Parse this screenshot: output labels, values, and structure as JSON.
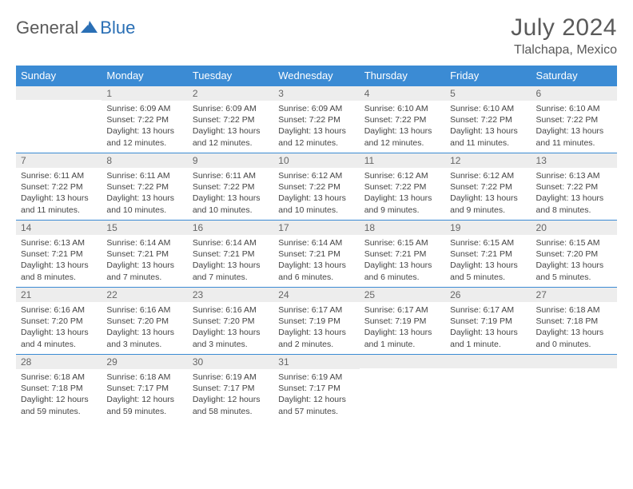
{
  "brand": {
    "part1": "General",
    "part2": "Blue"
  },
  "title": "July 2024",
  "location": "Tlalchapa, Mexico",
  "day_names": [
    "Sunday",
    "Monday",
    "Tuesday",
    "Wednesday",
    "Thursday",
    "Friday",
    "Saturday"
  ],
  "colors": {
    "header_bg": "#3b8bd4",
    "header_fg": "#ffffff",
    "daynum_bg": "#ededed",
    "daynum_fg": "#666666",
    "text": "#444444",
    "title_fg": "#5a5a5a",
    "brand_blue": "#2a6fb5",
    "row_border": "#3b8bd4"
  },
  "weeks": [
    [
      {
        "num": "",
        "sunrise": "",
        "sunset": "",
        "daylight": ""
      },
      {
        "num": "1",
        "sunrise": "Sunrise: 6:09 AM",
        "sunset": "Sunset: 7:22 PM",
        "daylight": "Daylight: 13 hours and 12 minutes."
      },
      {
        "num": "2",
        "sunrise": "Sunrise: 6:09 AM",
        "sunset": "Sunset: 7:22 PM",
        "daylight": "Daylight: 13 hours and 12 minutes."
      },
      {
        "num": "3",
        "sunrise": "Sunrise: 6:09 AM",
        "sunset": "Sunset: 7:22 PM",
        "daylight": "Daylight: 13 hours and 12 minutes."
      },
      {
        "num": "4",
        "sunrise": "Sunrise: 6:10 AM",
        "sunset": "Sunset: 7:22 PM",
        "daylight": "Daylight: 13 hours and 12 minutes."
      },
      {
        "num": "5",
        "sunrise": "Sunrise: 6:10 AM",
        "sunset": "Sunset: 7:22 PM",
        "daylight": "Daylight: 13 hours and 11 minutes."
      },
      {
        "num": "6",
        "sunrise": "Sunrise: 6:10 AM",
        "sunset": "Sunset: 7:22 PM",
        "daylight": "Daylight: 13 hours and 11 minutes."
      }
    ],
    [
      {
        "num": "7",
        "sunrise": "Sunrise: 6:11 AM",
        "sunset": "Sunset: 7:22 PM",
        "daylight": "Daylight: 13 hours and 11 minutes."
      },
      {
        "num": "8",
        "sunrise": "Sunrise: 6:11 AM",
        "sunset": "Sunset: 7:22 PM",
        "daylight": "Daylight: 13 hours and 10 minutes."
      },
      {
        "num": "9",
        "sunrise": "Sunrise: 6:11 AM",
        "sunset": "Sunset: 7:22 PM",
        "daylight": "Daylight: 13 hours and 10 minutes."
      },
      {
        "num": "10",
        "sunrise": "Sunrise: 6:12 AM",
        "sunset": "Sunset: 7:22 PM",
        "daylight": "Daylight: 13 hours and 10 minutes."
      },
      {
        "num": "11",
        "sunrise": "Sunrise: 6:12 AM",
        "sunset": "Sunset: 7:22 PM",
        "daylight": "Daylight: 13 hours and 9 minutes."
      },
      {
        "num": "12",
        "sunrise": "Sunrise: 6:12 AM",
        "sunset": "Sunset: 7:22 PM",
        "daylight": "Daylight: 13 hours and 9 minutes."
      },
      {
        "num": "13",
        "sunrise": "Sunrise: 6:13 AM",
        "sunset": "Sunset: 7:22 PM",
        "daylight": "Daylight: 13 hours and 8 minutes."
      }
    ],
    [
      {
        "num": "14",
        "sunrise": "Sunrise: 6:13 AM",
        "sunset": "Sunset: 7:21 PM",
        "daylight": "Daylight: 13 hours and 8 minutes."
      },
      {
        "num": "15",
        "sunrise": "Sunrise: 6:14 AM",
        "sunset": "Sunset: 7:21 PM",
        "daylight": "Daylight: 13 hours and 7 minutes."
      },
      {
        "num": "16",
        "sunrise": "Sunrise: 6:14 AM",
        "sunset": "Sunset: 7:21 PM",
        "daylight": "Daylight: 13 hours and 7 minutes."
      },
      {
        "num": "17",
        "sunrise": "Sunrise: 6:14 AM",
        "sunset": "Sunset: 7:21 PM",
        "daylight": "Daylight: 13 hours and 6 minutes."
      },
      {
        "num": "18",
        "sunrise": "Sunrise: 6:15 AM",
        "sunset": "Sunset: 7:21 PM",
        "daylight": "Daylight: 13 hours and 6 minutes."
      },
      {
        "num": "19",
        "sunrise": "Sunrise: 6:15 AM",
        "sunset": "Sunset: 7:21 PM",
        "daylight": "Daylight: 13 hours and 5 minutes."
      },
      {
        "num": "20",
        "sunrise": "Sunrise: 6:15 AM",
        "sunset": "Sunset: 7:20 PM",
        "daylight": "Daylight: 13 hours and 5 minutes."
      }
    ],
    [
      {
        "num": "21",
        "sunrise": "Sunrise: 6:16 AM",
        "sunset": "Sunset: 7:20 PM",
        "daylight": "Daylight: 13 hours and 4 minutes."
      },
      {
        "num": "22",
        "sunrise": "Sunrise: 6:16 AM",
        "sunset": "Sunset: 7:20 PM",
        "daylight": "Daylight: 13 hours and 3 minutes."
      },
      {
        "num": "23",
        "sunrise": "Sunrise: 6:16 AM",
        "sunset": "Sunset: 7:20 PM",
        "daylight": "Daylight: 13 hours and 3 minutes."
      },
      {
        "num": "24",
        "sunrise": "Sunrise: 6:17 AM",
        "sunset": "Sunset: 7:19 PM",
        "daylight": "Daylight: 13 hours and 2 minutes."
      },
      {
        "num": "25",
        "sunrise": "Sunrise: 6:17 AM",
        "sunset": "Sunset: 7:19 PM",
        "daylight": "Daylight: 13 hours and 1 minute."
      },
      {
        "num": "26",
        "sunrise": "Sunrise: 6:17 AM",
        "sunset": "Sunset: 7:19 PM",
        "daylight": "Daylight: 13 hours and 1 minute."
      },
      {
        "num": "27",
        "sunrise": "Sunrise: 6:18 AM",
        "sunset": "Sunset: 7:18 PM",
        "daylight": "Daylight: 13 hours and 0 minutes."
      }
    ],
    [
      {
        "num": "28",
        "sunrise": "Sunrise: 6:18 AM",
        "sunset": "Sunset: 7:18 PM",
        "daylight": "Daylight: 12 hours and 59 minutes."
      },
      {
        "num": "29",
        "sunrise": "Sunrise: 6:18 AM",
        "sunset": "Sunset: 7:17 PM",
        "daylight": "Daylight: 12 hours and 59 minutes."
      },
      {
        "num": "30",
        "sunrise": "Sunrise: 6:19 AM",
        "sunset": "Sunset: 7:17 PM",
        "daylight": "Daylight: 12 hours and 58 minutes."
      },
      {
        "num": "31",
        "sunrise": "Sunrise: 6:19 AM",
        "sunset": "Sunset: 7:17 PM",
        "daylight": "Daylight: 12 hours and 57 minutes."
      },
      {
        "num": "",
        "sunrise": "",
        "sunset": "",
        "daylight": ""
      },
      {
        "num": "",
        "sunrise": "",
        "sunset": "",
        "daylight": ""
      },
      {
        "num": "",
        "sunrise": "",
        "sunset": "",
        "daylight": ""
      }
    ]
  ]
}
